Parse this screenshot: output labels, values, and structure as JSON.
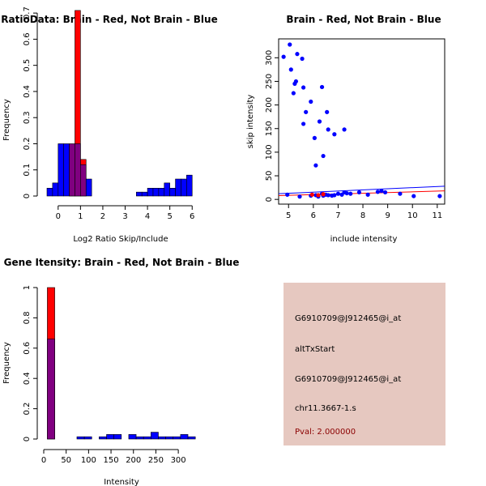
{
  "chart_data": [
    {
      "type": "bar",
      "title": "RatioData: Brain - Red, Not Brain - Blue",
      "xlabel": "Log2 Ratio Skip/Include",
      "ylabel": "Frequency",
      "xlim": [
        -0.5,
        6.1
      ],
      "ylim": [
        0,
        0.75
      ],
      "xticks": [
        0,
        1,
        2,
        3,
        4,
        5,
        6
      ],
      "yticks": [
        0.0,
        0.1,
        0.2,
        0.3,
        0.4,
        0.5,
        0.6,
        0.7
      ],
      "bin_width": 0.25,
      "series": [
        {
          "name": "Brain",
          "color": "#ff0000",
          "bins": [
            {
              "x0": 0.5,
              "value": 0.14
            },
            {
              "x0": 0.75,
              "value": 0.71
            },
            {
              "x0": 1.0,
              "value": 0.14
            }
          ]
        },
        {
          "name": "Not Brain",
          "color": "#0000ff",
          "bins": [
            {
              "x0": -0.5,
              "value": 0.03
            },
            {
              "x0": -0.25,
              "value": 0.05
            },
            {
              "x0": 0.0,
              "value": 0.2
            },
            {
              "x0": 0.25,
              "value": 0.2
            },
            {
              "x0": 0.5,
              "value": 0.2
            },
            {
              "x0": 0.75,
              "value": 0.2
            },
            {
              "x0": 1.0,
              "value": 0.12
            },
            {
              "x0": 1.25,
              "value": 0.065
            },
            {
              "x0": 3.5,
              "value": 0.015
            },
            {
              "x0": 3.75,
              "value": 0.015
            },
            {
              "x0": 4.0,
              "value": 0.03
            },
            {
              "x0": 4.25,
              "value": 0.03
            },
            {
              "x0": 4.5,
              "value": 0.03
            },
            {
              "x0": 4.75,
              "value": 0.05
            },
            {
              "x0": 5.0,
              "value": 0.03
            },
            {
              "x0": 5.25,
              "value": 0.065
            },
            {
              "x0": 5.5,
              "value": 0.065
            },
            {
              "x0": 5.75,
              "value": 0.08
            }
          ]
        }
      ]
    },
    {
      "type": "scatter",
      "title": "Brain - Red, Not Brain - Blue",
      "xlabel": "include intensity",
      "ylabel": "skip intensity",
      "xlim": [
        4.6,
        11.3
      ],
      "ylim": [
        -10,
        340
      ],
      "xticks": [
        5,
        6,
        7,
        8,
        9,
        10,
        11
      ],
      "yticks": [
        0,
        50,
        100,
        150,
        200,
        250,
        300
      ],
      "series": [
        {
          "name": "Not Brain",
          "color": "#0000ff",
          "points": [
            [
              4.8,
              302
            ],
            [
              5.05,
              328
            ],
            [
              5.1,
              275
            ],
            [
              5.2,
              225
            ],
            [
              5.25,
              245
            ],
            [
              5.3,
              250
            ],
            [
              5.35,
              308
            ],
            [
              5.55,
              298
            ],
            [
              5.6,
              237
            ],
            [
              5.6,
              160
            ],
            [
              5.7,
              185
            ],
            [
              5.9,
              207
            ],
            [
              6.05,
              130
            ],
            [
              6.1,
              72
            ],
            [
              6.25,
              165
            ],
            [
              6.35,
              238
            ],
            [
              6.4,
              92
            ],
            [
              6.55,
              185
            ],
            [
              6.6,
              148
            ],
            [
              6.85,
              138
            ],
            [
              7.25,
              148
            ],
            [
              4.95,
              10
            ],
            [
              5.45,
              6
            ],
            [
              5.9,
              8
            ],
            [
              6.1,
              9
            ],
            [
              6.2,
              6
            ],
            [
              6.35,
              12
            ],
            [
              6.4,
              8
            ],
            [
              6.5,
              10
            ],
            [
              6.6,
              9
            ],
            [
              6.75,
              8
            ],
            [
              6.85,
              9
            ],
            [
              7.0,
              12
            ],
            [
              7.15,
              10
            ],
            [
              7.25,
              15
            ],
            [
              7.35,
              13
            ],
            [
              7.5,
              12
            ],
            [
              7.85,
              15
            ],
            [
              8.2,
              10
            ],
            [
              8.6,
              16
            ],
            [
              8.75,
              18
            ],
            [
              8.9,
              15
            ],
            [
              9.5,
              12
            ],
            [
              10.05,
              7
            ],
            [
              11.1,
              7
            ]
          ],
          "fit_line": [
            [
              4.6,
              12
            ],
            [
              11.3,
              28
            ]
          ]
        },
        {
          "name": "Brain",
          "color": "#ff0000",
          "points": [
            [
              5.95,
              10
            ],
            [
              6.2,
              9
            ],
            [
              6.4,
              11
            ]
          ],
          "fit_line": [
            [
              4.6,
              8
            ],
            [
              11.3,
              18
            ]
          ]
        }
      ]
    },
    {
      "type": "bar",
      "title": "Gene Itensity: Brain - Red, Not Brain - Blue",
      "xlabel": "Intensity",
      "ylabel": "Frequency",
      "xlim": [
        0,
        335
      ],
      "ylim": [
        0,
        1.0
      ],
      "xticks": [
        0,
        50,
        100,
        150,
        200,
        250,
        300
      ],
      "yticks": [
        0.0,
        0.2,
        0.4,
        0.6,
        0.8,
        1.0
      ],
      "bin_width": 16.5,
      "series": [
        {
          "name": "Brain",
          "color": "#ff0000",
          "bins": [
            {
              "x0": 8,
              "value": 1.0
            }
          ]
        },
        {
          "name": "Not Brain",
          "color": "#0000ff",
          "bins": [
            {
              "x0": 8,
              "value": 0.66
            },
            {
              "x0": 74,
              "value": 0.015
            },
            {
              "x0": 90.5,
              "value": 0.015
            },
            {
              "x0": 123.5,
              "value": 0.015
            },
            {
              "x0": 140,
              "value": 0.03
            },
            {
              "x0": 156.5,
              "value": 0.03
            },
            {
              "x0": 189.5,
              "value": 0.03
            },
            {
              "x0": 206,
              "value": 0.015
            },
            {
              "x0": 222.5,
              "value": 0.015
            },
            {
              "x0": 239,
              "value": 0.045
            },
            {
              "x0": 255.5,
              "value": 0.015
            },
            {
              "x0": 272,
              "value": 0.015
            },
            {
              "x0": 288.5,
              "value": 0.015
            },
            {
              "x0": 305,
              "value": 0.03
            },
            {
              "x0": 321.5,
              "value": 0.015
            }
          ]
        }
      ]
    }
  ],
  "info_panel": {
    "background": "#e6c8c0",
    "lines": [
      "G6910709@J912465@i_at",
      "altTxStart",
      "G6910709@J912465@i_at",
      "chr11.3667-1.s"
    ],
    "pval": "Pval: 2.000000"
  }
}
